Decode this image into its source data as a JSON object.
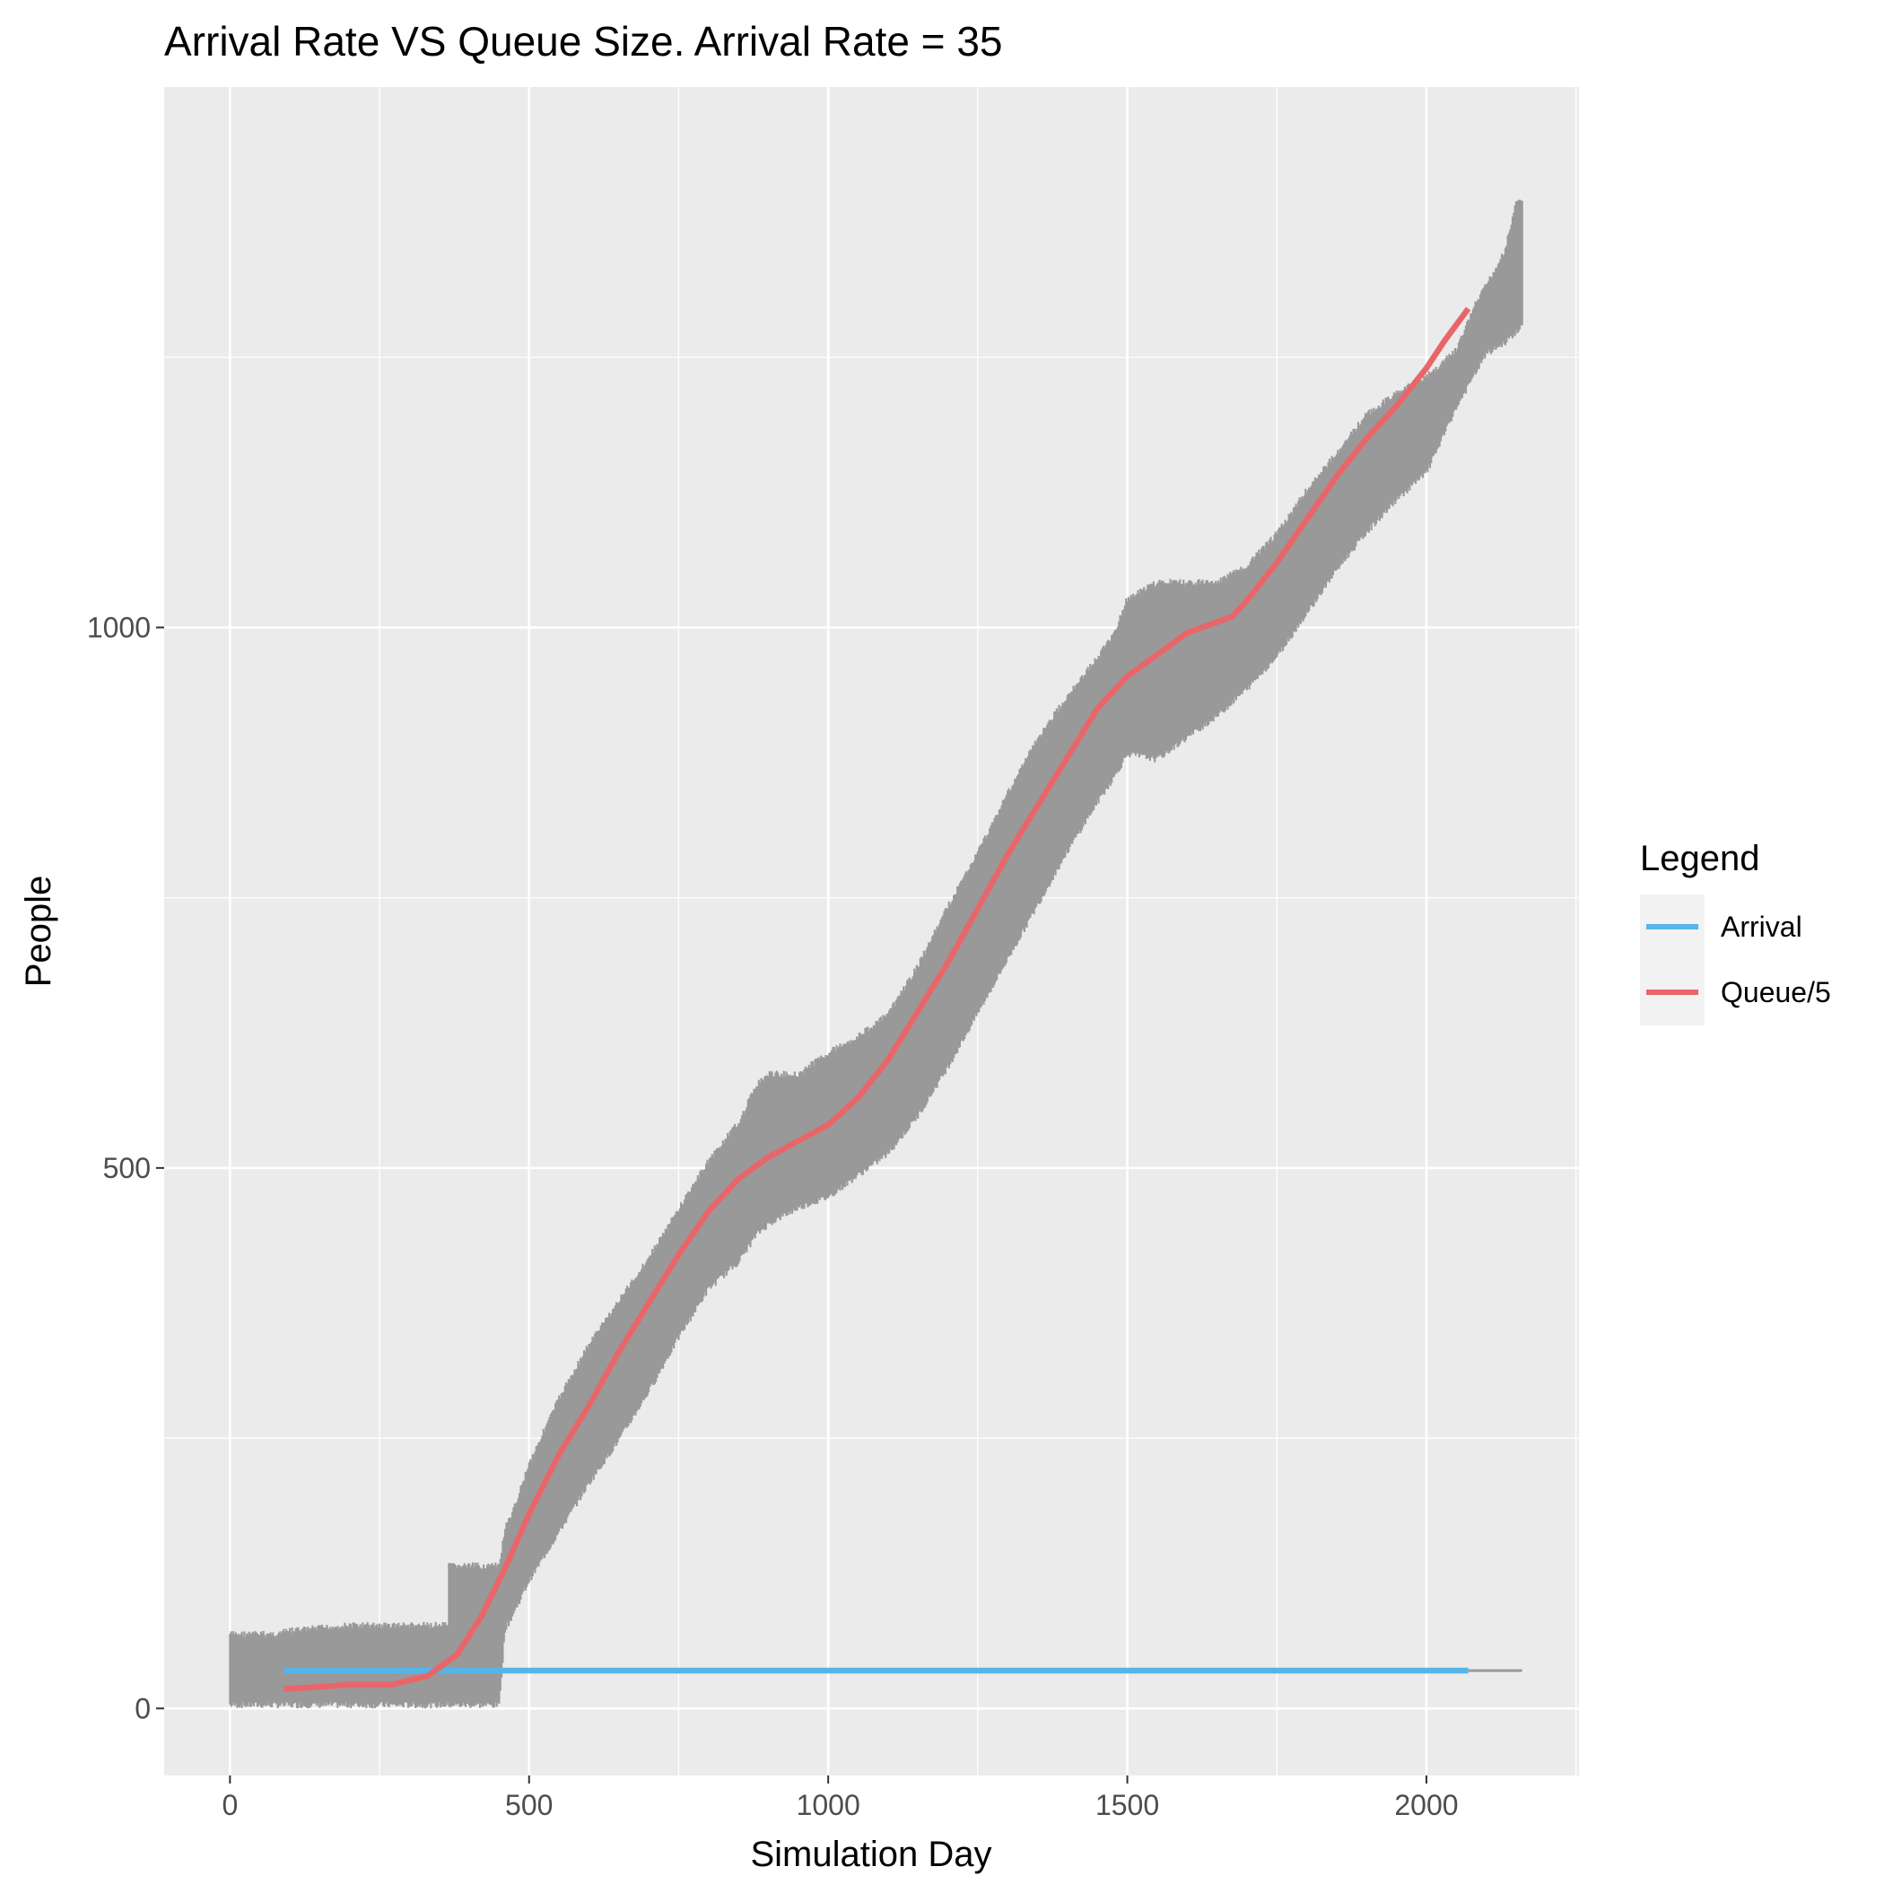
{
  "chart_data": {
    "type": "line",
    "title": "Arrival Rate VS Queue Size. Arrival Rate = 35",
    "xlabel": "Simulation Day",
    "ylabel": "People",
    "xlim": [
      -110,
      2255
    ],
    "ylim": [
      -62,
      1500
    ],
    "x_ticks": [
      0,
      500,
      1000,
      1500,
      2000
    ],
    "x_tick_labels": [
      "0",
      "500",
      "1000",
      "1500",
      "2000"
    ],
    "y_ticks": [
      0,
      500,
      1000
    ],
    "y_tick_labels": [
      "0",
      "500",
      "1000"
    ],
    "grid": true,
    "panel_background": "#EBEBEB",
    "legend": {
      "title": "Legend",
      "position": "right",
      "entries": [
        {
          "label": "Arrival",
          "color": "#56B4E9"
        },
        {
          "label": "Queue/5",
          "color": "#E8666A"
        }
      ]
    },
    "series": [
      {
        "name": "Arrival",
        "color": "#56B4E9",
        "x": [
          90,
          2070
        ],
        "y": [
          35,
          35
        ]
      },
      {
        "name": "Queue/5",
        "color": "#E8666A",
        "x": [
          90,
          150,
          200,
          270,
          330,
          380,
          420,
          460,
          500,
          550,
          600,
          650,
          700,
          750,
          800,
          850,
          900,
          950,
          1000,
          1050,
          1100,
          1150,
          1200,
          1250,
          1300,
          1350,
          1400,
          1450,
          1500,
          1550,
          1600,
          1650,
          1675,
          1700,
          1750,
          1800,
          1850,
          1900,
          1950,
          2000,
          2030,
          2070
        ],
        "y": [
          18,
          20,
          22,
          22,
          30,
          50,
          85,
          130,
          180,
          235,
          280,
          330,
          375,
          420,
          460,
          490,
          510,
          525,
          540,
          565,
          600,
          645,
          690,
          740,
          790,
          835,
          880,
          925,
          955,
          975,
          995,
          1005,
          1010,
          1025,
          1060,
          1100,
          1140,
          1175,
          1205,
          1240,
          1265,
          1295
        ]
      },
      {
        "name": "Queue",
        "color": "#999999",
        "style": "noise-band",
        "x": [
          0,
          80,
          100,
          200,
          300,
          365,
          366,
          400,
          450,
          460,
          470,
          500,
          550,
          600,
          650,
          700,
          750,
          800,
          850,
          880,
          900,
          950,
          1000,
          1050,
          1100,
          1150,
          1200,
          1250,
          1300,
          1350,
          1400,
          1450,
          1480,
          1500,
          1550,
          1600,
          1650,
          1700,
          1750,
          1800,
          1850,
          1900,
          1950,
          2000,
          2050,
          2080,
          2100,
          2130,
          2150,
          2160
        ],
        "upper": [
          72,
          72,
          75,
          80,
          80,
          80,
          135,
          135,
          135,
          170,
          180,
          230,
          290,
          340,
          380,
          420,
          465,
          510,
          545,
          580,
          590,
          590,
          610,
          625,
          645,
          690,
          745,
          795,
          850,
          900,
          940,
          975,
          1000,
          1030,
          1045,
          1045,
          1045,
          1060,
          1090,
          1130,
          1165,
          1200,
          1220,
          1235,
          1260,
          1300,
          1320,
          1350,
          1395,
          1400
        ],
        "lower": [
          0,
          0,
          0,
          0,
          0,
          0,
          0,
          0,
          0,
          70,
          80,
          115,
          160,
          205,
          245,
          290,
          340,
          385,
          410,
          435,
          445,
          460,
          470,
          490,
          510,
          545,
          590,
          640,
          690,
          740,
          790,
          835,
          860,
          880,
          875,
          895,
          915,
          940,
          970,
          1010,
          1050,
          1085,
          1115,
          1140,
          1200,
          1230,
          1250,
          1260,
          1270,
          1275
        ]
      }
    ]
  }
}
